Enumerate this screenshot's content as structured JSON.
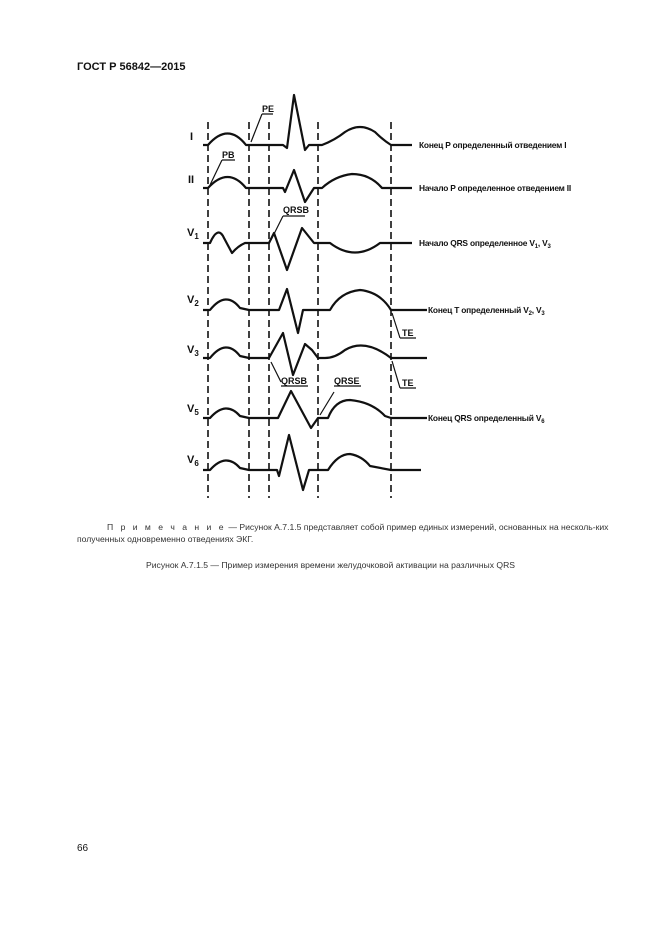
{
  "header": "ГОСТ Р 56842—2015",
  "figure": {
    "leads": [
      {
        "name": "I",
        "sub": ""
      },
      {
        "name": "II",
        "sub": ""
      },
      {
        "name": "V",
        "sub": "1"
      },
      {
        "name": "V",
        "sub": "2"
      },
      {
        "name": "V",
        "sub": "3"
      },
      {
        "name": "V",
        "sub": "5"
      },
      {
        "name": "V",
        "sub": "6"
      }
    ],
    "markers": {
      "pe": "PE",
      "pb": "PB",
      "qrsb1": "QRSB",
      "qrsb2": "QRSB",
      "qrse": "QRSE",
      "te1": "TE",
      "te2": "TE"
    },
    "annotations": [
      "Конец P определенный отведением I",
      "Начало P определенное отведением II",
      "Начало QRS определенное V",
      "Конец T определенный V",
      "Конец QRS определенный V"
    ],
    "annotation_subs": {
      "a3": [
        "1",
        "3"
      ],
      "a4": [
        "2",
        "3"
      ],
      "a5": "6"
    }
  },
  "note": {
    "label": "П р и м е ч а н и е",
    "text": " — Рисунок А.7.1.5 представляет собой пример единых измерений, основанных на несколь-ких полученных одновременно отведениях ЭКГ."
  },
  "caption": "Рисунок А.7.1.5 — Пример измерения времени желудочковой активации на различных QRS",
  "page_number": "66"
}
